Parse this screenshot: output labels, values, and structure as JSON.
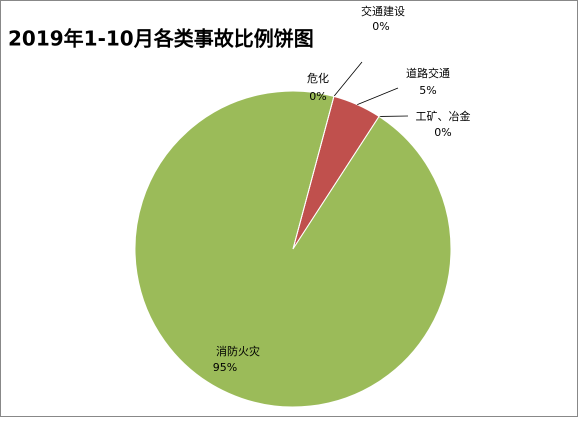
{
  "chart_data": {
    "type": "pie",
    "title": "2019年1-10月各类事故比例饼图",
    "categories": [
      "交通建设",
      "道路交通",
      "工矿、冶金",
      "消防火灾",
      "危化"
    ],
    "values": [
      0,
      5,
      0,
      95,
      0
    ],
    "value_labels": [
      "0%",
      "5%",
      "0%",
      "95%",
      "0%"
    ],
    "colors": [
      "#4f81bd",
      "#c0504d",
      "#8064a2",
      "#9bbb59",
      "#4bacc6"
    ],
    "start_angle": 15
  }
}
